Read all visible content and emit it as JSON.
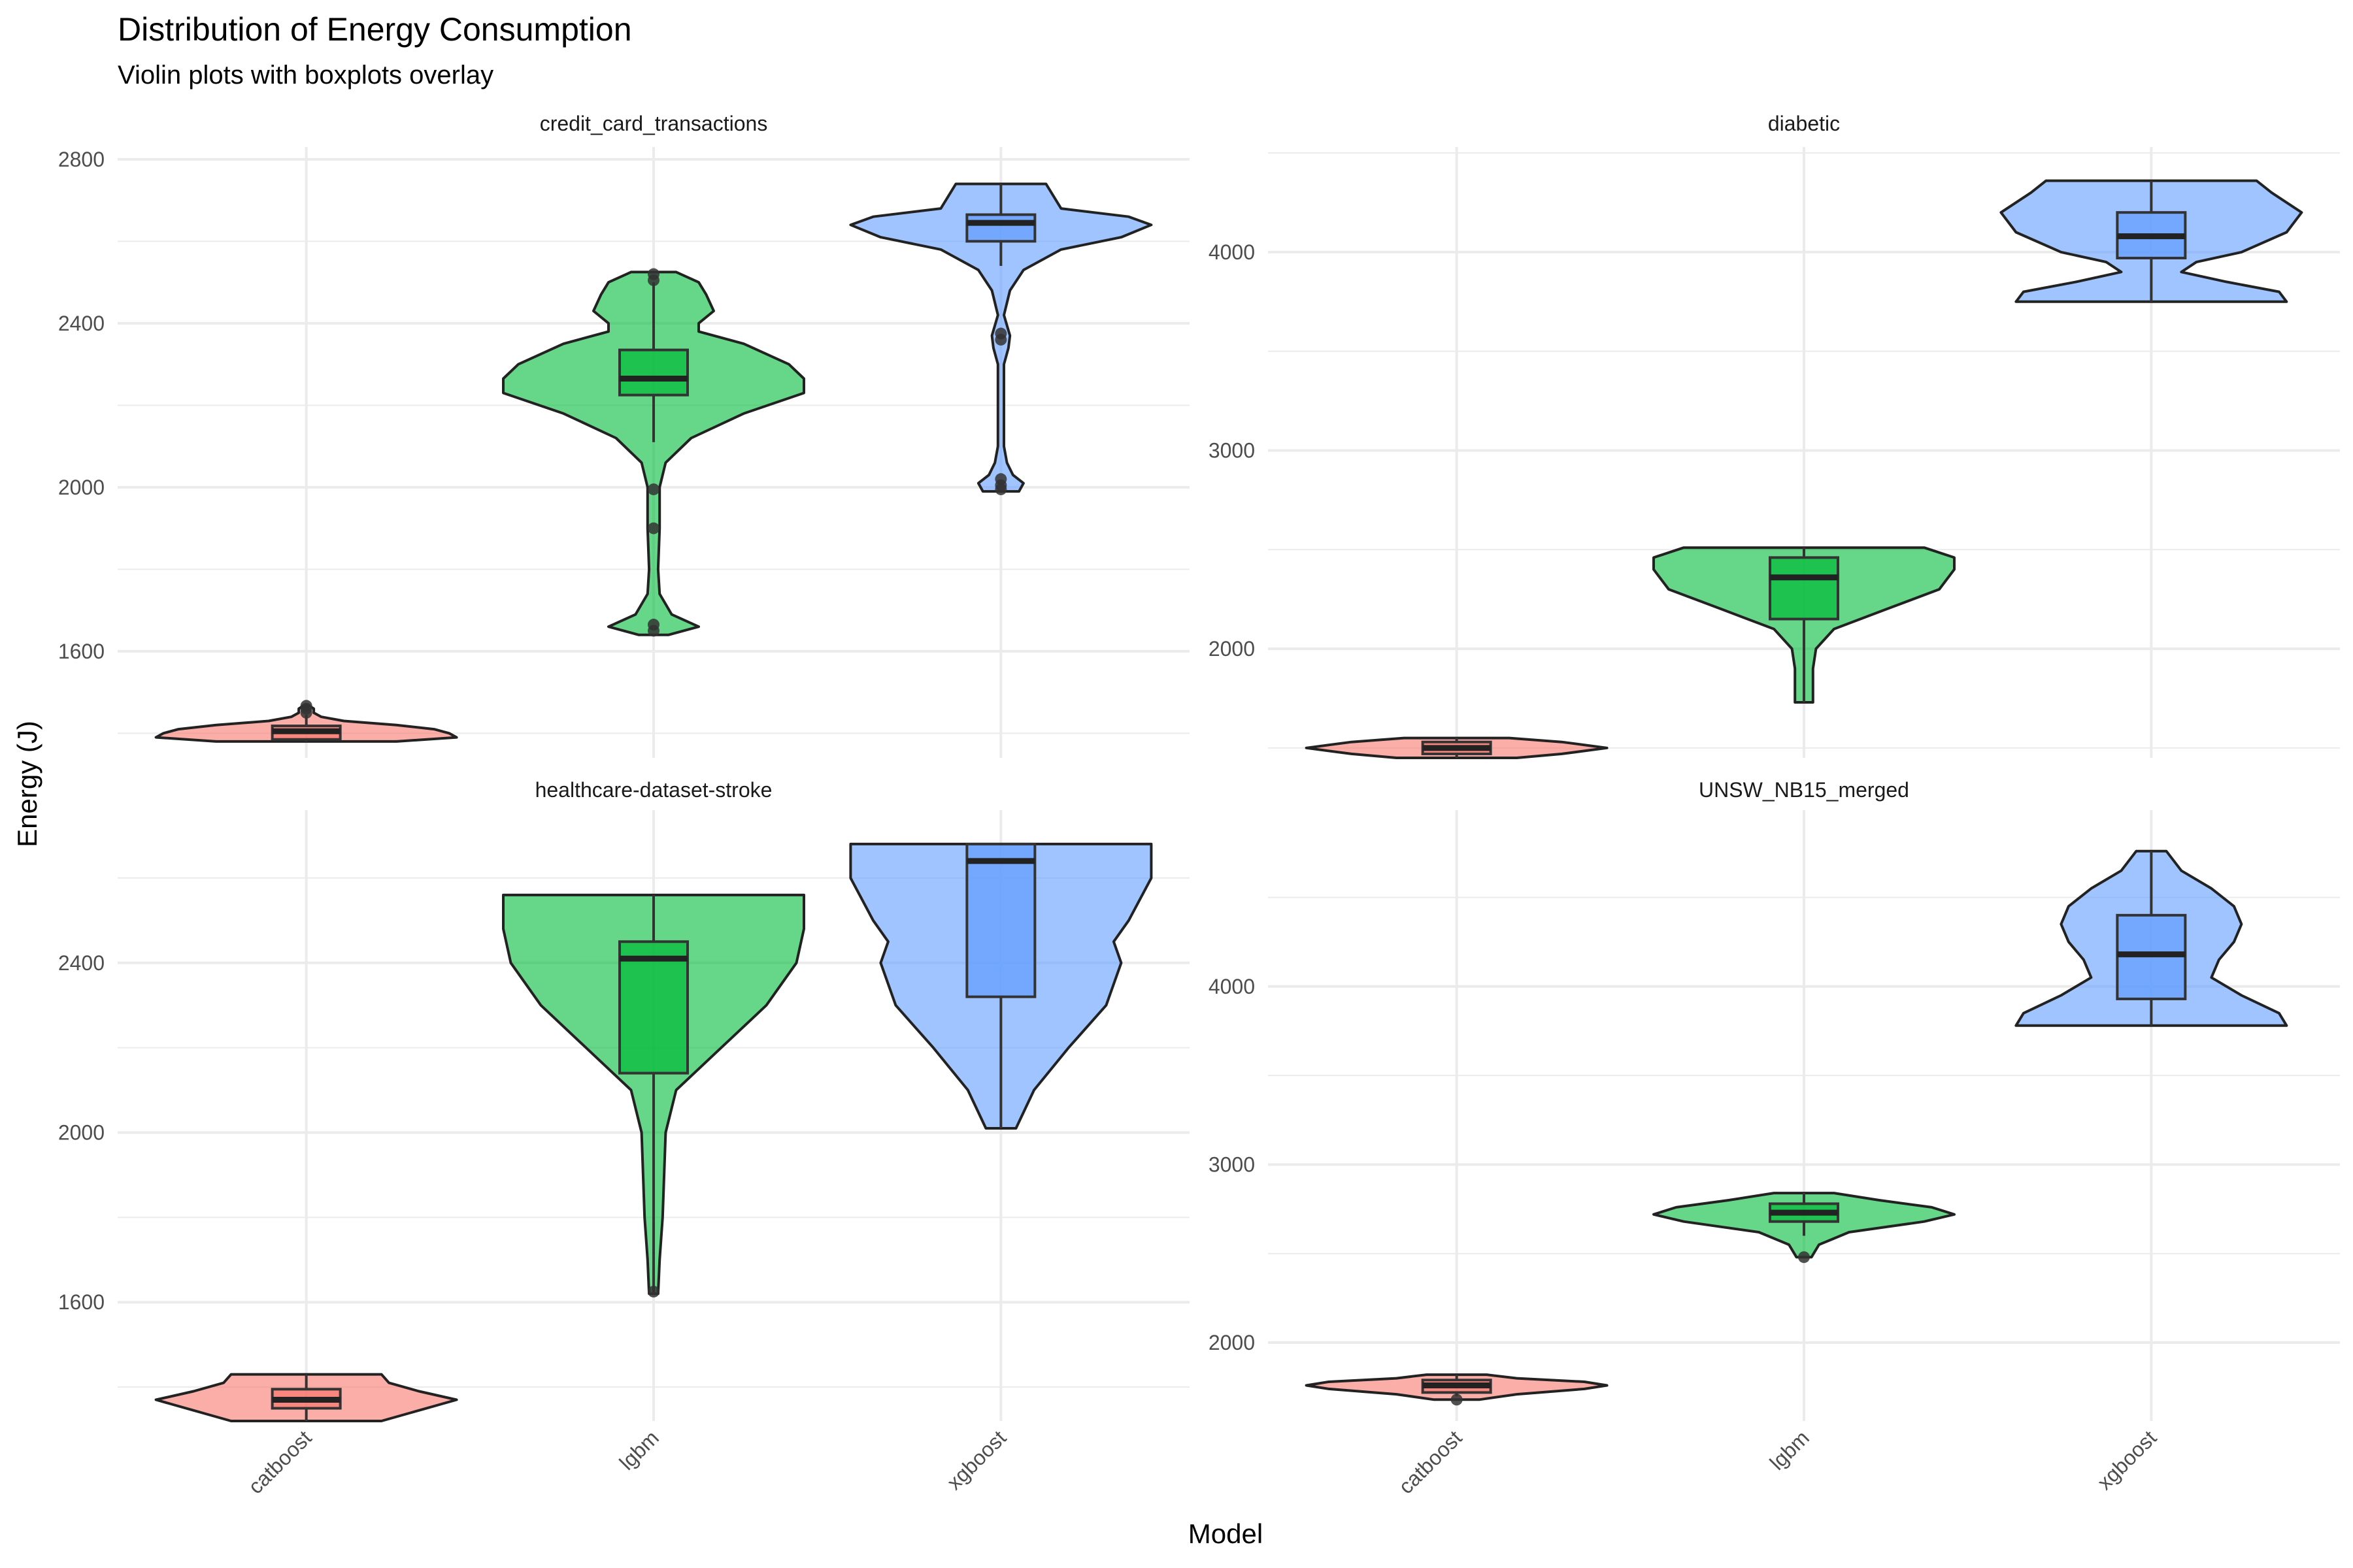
{
  "chart_data": {
    "type": "violin",
    "title": "Distribution of Energy Consumption",
    "subtitle": "Violin plots with boxplots overlay",
    "xlabel": "Model",
    "ylabel": "Energy (J)",
    "categories": [
      "catboost",
      "lgbm",
      "xgboost"
    ],
    "colors": {
      "catboost": "#F8766D",
      "lgbm": "#00BA38",
      "xgboost": "#619CFF"
    },
    "panels": [
      {
        "name": "credit_card_transactions",
        "ylim": [
          1340,
          2830
        ],
        "yticks": [
          1600,
          2000,
          2400,
          2800
        ],
        "groups": [
          {
            "model": "catboost",
            "min": 1380,
            "max": 1467,
            "q1": 1385,
            "median": 1405,
            "q3": 1418,
            "whisker_low": 1380,
            "whisker_high": 1445,
            "outliers": [
              1450,
              1460,
              1467
            ],
            "density": [
              [
                1380,
                0.6
              ],
              [
                1390,
                1.0
              ],
              [
                1400,
                0.95
              ],
              [
                1410,
                0.85
              ],
              [
                1420,
                0.6
              ],
              [
                1430,
                0.25
              ],
              [
                1440,
                0.1
              ],
              [
                1450,
                0.05
              ],
              [
                1460,
                0.05
              ],
              [
                1467,
                0.02
              ]
            ]
          },
          {
            "model": "lgbm",
            "min": 1640,
            "max": 2525,
            "q1": 2225,
            "median": 2265,
            "q3": 2335,
            "whisker_low": 2110,
            "whisker_high": 2500,
            "outliers": [
              1650,
              1665,
              1900,
              1995,
              2505,
              2520
            ],
            "density": [
              [
                1640,
                0.1
              ],
              [
                1660,
                0.3
              ],
              [
                1690,
                0.12
              ],
              [
                1740,
                0.04
              ],
              [
                1800,
                0.03
              ],
              [
                1900,
                0.04
              ],
              [
                2000,
                0.04
              ],
              [
                2060,
                0.08
              ],
              [
                2120,
                0.25
              ],
              [
                2180,
                0.6
              ],
              [
                2230,
                1.0
              ],
              [
                2265,
                1.0
              ],
              [
                2300,
                0.9
              ],
              [
                2350,
                0.6
              ],
              [
                2380,
                0.3
              ],
              [
                2400,
                0.3
              ],
              [
                2430,
                0.4
              ],
              [
                2470,
                0.35
              ],
              [
                2500,
                0.3
              ],
              [
                2525,
                0.15
              ]
            ]
          },
          {
            "model": "xgboost",
            "min": 1990,
            "max": 2740,
            "q1": 2600,
            "median": 2645,
            "q3": 2665,
            "whisker_low": 2540,
            "whisker_high": 2740,
            "outliers": [
              1995,
              2005,
              2020,
              2360,
              2375
            ],
            "density": [
              [
                1990,
                0.12
              ],
              [
                2010,
                0.15
              ],
              [
                2030,
                0.08
              ],
              [
                2060,
                0.04
              ],
              [
                2100,
                0.02
              ],
              [
                2200,
                0.02
              ],
              [
                2300,
                0.02
              ],
              [
                2340,
                0.05
              ],
              [
                2370,
                0.06
              ],
              [
                2420,
                0.02
              ],
              [
                2480,
                0.06
              ],
              [
                2530,
                0.15
              ],
              [
                2580,
                0.4
              ],
              [
                2610,
                0.8
              ],
              [
                2640,
                1.0
              ],
              [
                2660,
                0.85
              ],
              [
                2680,
                0.4
              ],
              [
                2710,
                0.35
              ],
              [
                2740,
                0.3
              ]
            ]
          }
        ]
      },
      {
        "name": "diabetic",
        "ylim": [
          1450,
          4530
        ],
        "yticks": [
          2000,
          3000,
          4000
        ],
        "groups": [
          {
            "model": "catboost",
            "min": 1450,
            "max": 1550,
            "q1": 1470,
            "median": 1500,
            "q3": 1530,
            "whisker_low": 1450,
            "whisker_high": 1550,
            "outliers": [],
            "density": [
              [
                1450,
                0.4
              ],
              [
                1470,
                0.7
              ],
              [
                1500,
                1.0
              ],
              [
                1530,
                0.7
              ],
              [
                1550,
                0.35
              ]
            ]
          },
          {
            "model": "lgbm",
            "min": 1730,
            "max": 2510,
            "q1": 2150,
            "median": 2360,
            "q3": 2460,
            "whisker_low": 1730,
            "whisker_high": 2510,
            "outliers": [],
            "density": [
              [
                1730,
                0.06
              ],
              [
                1900,
                0.06
              ],
              [
                2000,
                0.08
              ],
              [
                2100,
                0.2
              ],
              [
                2200,
                0.55
              ],
              [
                2300,
                0.9
              ],
              [
                2400,
                1.0
              ],
              [
                2460,
                1.0
              ],
              [
                2510,
                0.8
              ]
            ]
          },
          {
            "model": "xgboost",
            "min": 3750,
            "max": 4360,
            "q1": 3970,
            "median": 4080,
            "q3": 4200,
            "whisker_low": 3750,
            "whisker_high": 4360,
            "outliers": [],
            "density": [
              [
                3750,
                0.9
              ],
              [
                3800,
                0.85
              ],
              [
                3850,
                0.5
              ],
              [
                3900,
                0.2
              ],
              [
                3950,
                0.3
              ],
              [
                4000,
                0.6
              ],
              [
                4100,
                0.9
              ],
              [
                4200,
                1.0
              ],
              [
                4300,
                0.8
              ],
              [
                4360,
                0.7
              ]
            ]
          }
        ]
      },
      {
        "name": "healthcare-dataset-stroke",
        "ylim": [
          1320,
          2760
        ],
        "yticks": [
          1600,
          2000,
          2400
        ],
        "groups": [
          {
            "model": "catboost",
            "min": 1320,
            "max": 1430,
            "q1": 1350,
            "median": 1370,
            "q3": 1395,
            "whisker_low": 1320,
            "whisker_high": 1430,
            "outliers": [],
            "density": [
              [
                1320,
                0.5
              ],
              [
                1340,
                0.7
              ],
              [
                1360,
                0.9
              ],
              [
                1370,
                1.0
              ],
              [
                1390,
                0.75
              ],
              [
                1410,
                0.55
              ],
              [
                1430,
                0.5
              ]
            ]
          },
          {
            "model": "lgbm",
            "min": 1620,
            "max": 2560,
            "q1": 2140,
            "median": 2410,
            "q3": 2450,
            "whisker_low": 1620,
            "whisker_high": 2560,
            "outliers": [
              1625
            ],
            "density": [
              [
                1620,
                0.03
              ],
              [
                1700,
                0.04
              ],
              [
                1800,
                0.06
              ],
              [
                1900,
                0.07
              ],
              [
                2000,
                0.08
              ],
              [
                2100,
                0.15
              ],
              [
                2200,
                0.45
              ],
              [
                2300,
                0.75
              ],
              [
                2400,
                0.95
              ],
              [
                2480,
                1.0
              ],
              [
                2560,
                1.0
              ]
            ]
          },
          {
            "model": "xgboost",
            "min": 2010,
            "max": 2680,
            "q1": 2320,
            "median": 2640,
            "q3": 2680,
            "whisker_low": 2010,
            "whisker_high": 2680,
            "outliers": [],
            "density": [
              [
                2010,
                0.1
              ],
              [
                2100,
                0.22
              ],
              [
                2200,
                0.45
              ],
              [
                2300,
                0.7
              ],
              [
                2400,
                0.8
              ],
              [
                2450,
                0.75
              ],
              [
                2500,
                0.85
              ],
              [
                2600,
                1.0
              ],
              [
                2680,
                1.0
              ]
            ]
          }
        ]
      },
      {
        "name": "UNSW_NB15_merged",
        "ylim": [
          1560,
          4990
        ],
        "yticks": [
          2000,
          3000,
          4000
        ],
        "groups": [
          {
            "model": "catboost",
            "min": 1680,
            "max": 1820,
            "q1": 1720,
            "median": 1760,
            "q3": 1790,
            "whisker_low": 1700,
            "whisker_high": 1820,
            "outliers": [
              1680
            ],
            "density": [
              [
                1680,
                0.15
              ],
              [
                1710,
                0.4
              ],
              [
                1740,
                0.85
              ],
              [
                1760,
                1.0
              ],
              [
                1780,
                0.85
              ],
              [
                1800,
                0.4
              ],
              [
                1820,
                0.2
              ]
            ]
          },
          {
            "model": "lgbm",
            "min": 2480,
            "max": 2840,
            "q1": 2680,
            "median": 2730,
            "q3": 2780,
            "whisker_low": 2600,
            "whisker_high": 2840,
            "outliers": [
              2480
            ],
            "density": [
              [
                2480,
                0.05
              ],
              [
                2550,
                0.1
              ],
              [
                2620,
                0.3
              ],
              [
                2680,
                0.8
              ],
              [
                2720,
                1.0
              ],
              [
                2760,
                0.85
              ],
              [
                2800,
                0.5
              ],
              [
                2840,
                0.2
              ]
            ]
          },
          {
            "model": "xgboost",
            "min": 3780,
            "max": 4760,
            "q1": 3930,
            "median": 4180,
            "q3": 4400,
            "whisker_low": 3780,
            "whisker_high": 4760,
            "outliers": [],
            "density": [
              [
                3780,
                0.9
              ],
              [
                3850,
                0.85
              ],
              [
                3950,
                0.6
              ],
              [
                4050,
                0.4
              ],
              [
                4150,
                0.45
              ],
              [
                4250,
                0.55
              ],
              [
                4350,
                0.6
              ],
              [
                4450,
                0.55
              ],
              [
                4550,
                0.4
              ],
              [
                4650,
                0.2
              ],
              [
                4760,
                0.1
              ]
            ]
          }
        ]
      }
    ]
  }
}
